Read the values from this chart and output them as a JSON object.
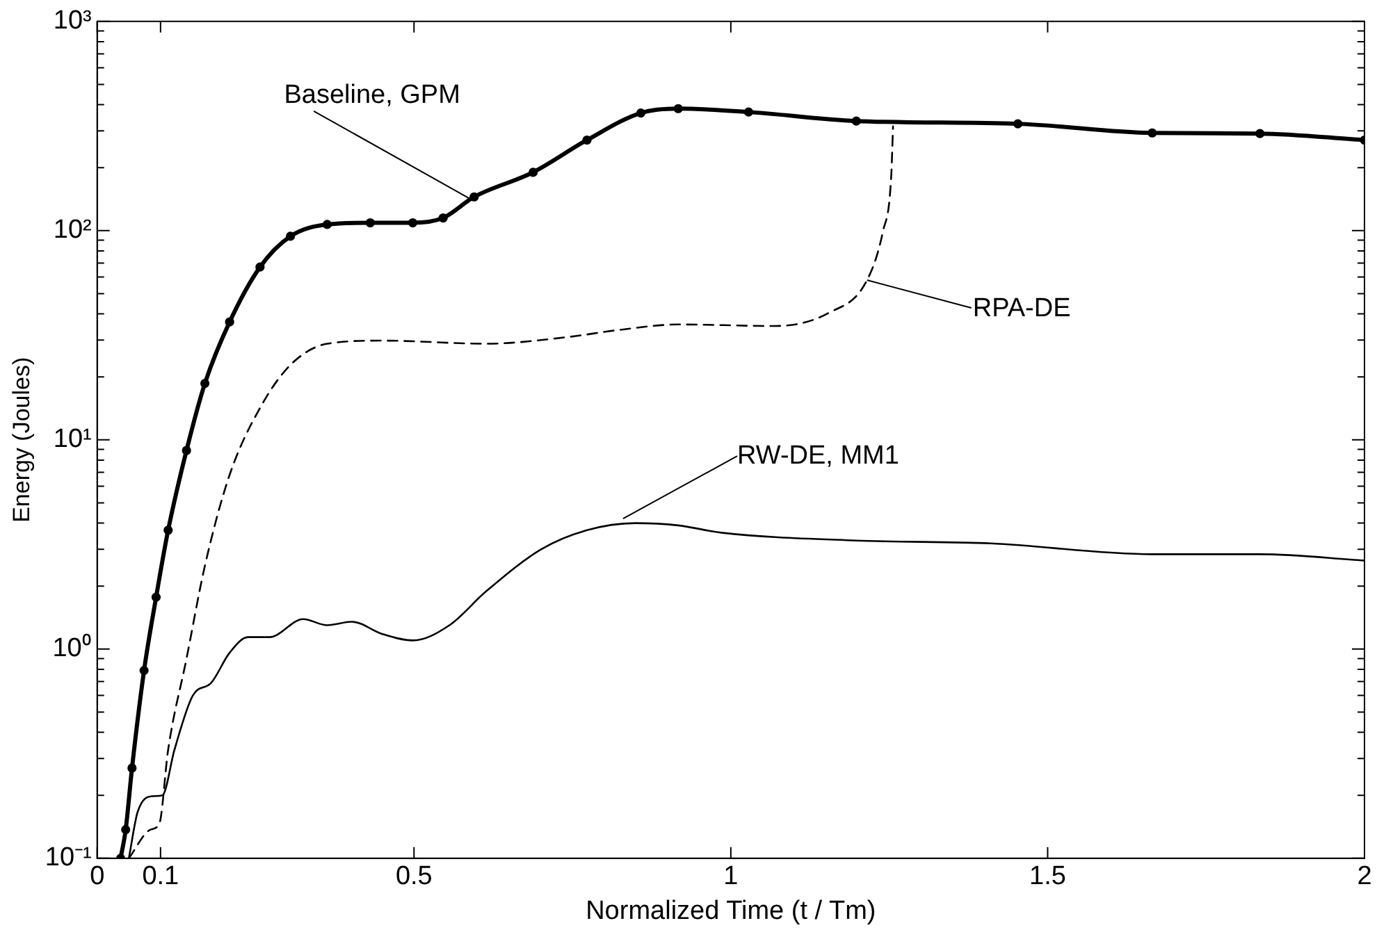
{
  "chart_data": {
    "type": "line",
    "xlabel": "Normalized Time (t / Tm)",
    "ylabel": "Energy (Joules)",
    "log": "y",
    "grid": false,
    "legend": false,
    "xlim": [
      0,
      2
    ],
    "xticks": [
      0,
      0.1,
      0.5,
      1,
      1.5,
      2
    ],
    "ylim": [
      0.1,
      1000
    ],
    "yticks": [
      {
        "value": 0.1,
        "label": "10⁻¹"
      },
      {
        "value": 0.2,
        "label": null
      },
      {
        "value": 0.3,
        "label": null
      },
      {
        "value": 0.4,
        "label": null
      },
      {
        "value": 0.5,
        "label": null
      },
      {
        "value": 0.6,
        "label": null
      },
      {
        "value": 0.7,
        "label": null
      },
      {
        "value": 0.8,
        "label": null
      },
      {
        "value": 0.9,
        "label": null
      },
      {
        "value": 1,
        "label": "10⁰"
      },
      {
        "value": 2,
        "label": null
      },
      {
        "value": 3,
        "label": null
      },
      {
        "value": 4,
        "label": null
      },
      {
        "value": 5,
        "label": null
      },
      {
        "value": 6,
        "label": null
      },
      {
        "value": 7,
        "label": null
      },
      {
        "value": 8,
        "label": null
      },
      {
        "value": 9,
        "label": null
      },
      {
        "value": 10,
        "label": "10¹"
      },
      {
        "value": 20,
        "label": null
      },
      {
        "value": 30,
        "label": null
      },
      {
        "value": 40,
        "label": null
      },
      {
        "value": 50,
        "label": null
      },
      {
        "value": 60,
        "label": null
      },
      {
        "value": 70,
        "label": null
      },
      {
        "value": 80,
        "label": null
      },
      {
        "value": 90,
        "label": null
      },
      {
        "value": 100,
        "label": "10²"
      },
      {
        "value": 200,
        "label": null
      },
      {
        "value": 300,
        "label": null
      },
      {
        "value": 400,
        "label": null
      },
      {
        "value": 500,
        "label": null
      },
      {
        "value": 600,
        "label": null
      },
      {
        "value": 700,
        "label": null
      },
      {
        "value": 800,
        "label": null
      },
      {
        "value": 900,
        "label": null
      },
      {
        "value": 1000,
        "label": "10³"
      }
    ],
    "series": [
      {
        "color": "#000000",
        "marker": "circle",
        "line_style": "solid",
        "x": [
          0.037,
          0.045,
          0.055,
          0.074,
          0.093,
          0.112,
          0.141,
          0.17,
          0.209,
          0.257,
          0.305,
          0.363,
          0.431,
          0.498,
          0.546,
          0.595,
          0.688,
          0.773,
          0.858,
          0.917,
          1.028,
          1.198,
          1.453,
          1.665,
          1.835,
          2.0
        ],
        "values": [
          0.1,
          0.137,
          0.27,
          0.79,
          1.77,
          3.7,
          8.9,
          18.6,
          36.6,
          67,
          94,
          107,
          109,
          109,
          115,
          145,
          190,
          271,
          365,
          383,
          369,
          334,
          324,
          293,
          291,
          271
        ]
      },
      {
        "color": "#000000",
        "marker": "none",
        "line_style": "dashed",
        "x": [
          0.05,
          0.084,
          0.098,
          0.112,
          0.141,
          0.17,
          0.209,
          0.257,
          0.305,
          0.363,
          0.45,
          0.614,
          0.739,
          0.823,
          0.917,
          1.07,
          1.155,
          1.215,
          1.24,
          1.253,
          1.256
        ],
        "values": [
          0.1,
          0.137,
          0.146,
          0.33,
          0.9,
          2.5,
          6.8,
          14.2,
          22.8,
          28.8,
          29.8,
          28.8,
          30.9,
          33.5,
          35.6,
          35,
          40.5,
          58,
          99,
          179,
          315
        ]
      },
      {
        "color": "#000000",
        "marker": "none",
        "line_style": "solid",
        "x": [
          0.05,
          0.064,
          0.088,
          0.103,
          0.122,
          0.151,
          0.18,
          0.209,
          0.238,
          0.272,
          0.325,
          0.363,
          0.402,
          0.45,
          0.498,
          0.556,
          0.614,
          0.701,
          0.773,
          0.849,
          0.917,
          0.985,
          1.198,
          1.41,
          1.665,
          1.835,
          2.0
        ],
        "values": [
          0.1,
          0.167,
          0.198,
          0.2,
          0.33,
          0.6,
          0.69,
          0.96,
          1.14,
          1.14,
          1.39,
          1.3,
          1.35,
          1.18,
          1.1,
          1.3,
          1.89,
          3.0,
          3.7,
          4.0,
          3.9,
          3.6,
          3.3,
          3.2,
          2.84,
          2.84,
          2.65
        ]
      }
    ],
    "annotations": [
      {
        "text": "Baseline, GPM",
        "x": 0.592,
        "y": 140
      },
      {
        "text": "RPA-DE",
        "x": 1.215,
        "y": 58
      },
      {
        "text": "RW-DE, MM1",
        "x": 0.83,
        "y": 4.2
      }
    ]
  }
}
